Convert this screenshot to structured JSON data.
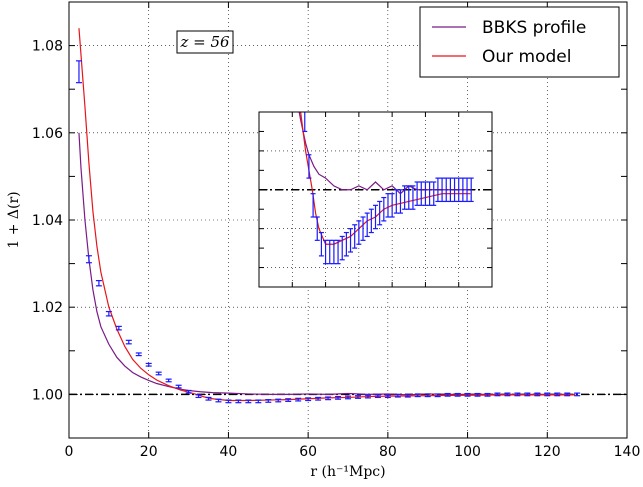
{
  "chart_data": {
    "type": "line",
    "xlabel": "r  (h⁻¹Mpc)",
    "ylabel": "1 + Δ(r)",
    "xlim": [
      0,
      140
    ],
    "ylim": [
      0.99,
      1.09
    ],
    "x_ticks": [
      "0",
      "20",
      "40",
      "60",
      "80",
      "100",
      "120",
      "140"
    ],
    "y_ticks": [
      "1.00",
      "1.02",
      "1.04",
      "1.06",
      "1.08"
    ],
    "grid": true,
    "legend_position": "top-right",
    "annotation": "z = 56",
    "reference_line": {
      "y": 1.0,
      "style": "dash-dot",
      "color": "#000000"
    },
    "series": [
      {
        "name": "BBKS profile",
        "color": "#7b1a88",
        "style": "line",
        "x": [
          2.5,
          3,
          4,
          5,
          6,
          7,
          8,
          10,
          12,
          14,
          16,
          18,
          20,
          22,
          25,
          28,
          30,
          33,
          36,
          40,
          45,
          50,
          55,
          60,
          65,
          70,
          75,
          80,
          85,
          90,
          95,
          100,
          110,
          120,
          127
        ],
        "y": [
          1.06,
          1.052,
          1.04,
          1.031,
          1.024,
          1.019,
          1.0155,
          1.0115,
          1.0085,
          1.0065,
          1.005,
          1.004,
          1.0032,
          1.0025,
          1.0018,
          1.0012,
          1.0009,
          1.0006,
          1.0004,
          1.0003,
          1.0001,
          1.0,
          1.0,
          1.0001,
          1.0,
          1.0002,
          1.0,
          1.0001,
          0.9999,
          1.0001,
          1.0,
          1.0,
          1.0,
          1.0,
          1.0
        ]
      },
      {
        "name": "Our model",
        "color": "#e8141b",
        "style": "line",
        "x": [
          2.5,
          3,
          4,
          5,
          6,
          7,
          8,
          10,
          12,
          14,
          16,
          18,
          20,
          22,
          25,
          28,
          30,
          32,
          34,
          36,
          38,
          40,
          42,
          45,
          50,
          55,
          60,
          65,
          70,
          75,
          80,
          90,
          100,
          110,
          120,
          127
        ],
        "y": [
          1.084,
          1.078,
          1.066,
          1.053,
          1.042,
          1.034,
          1.028,
          1.02,
          1.015,
          1.011,
          1.008,
          1.006,
          1.0045,
          1.0033,
          1.002,
          1.001,
          1.0005,
          1.0,
          0.9994,
          0.999,
          0.9988,
          0.9986,
          0.9986,
          0.9986,
          0.9987,
          0.9988,
          0.999,
          0.9992,
          0.9993,
          0.9995,
          0.9996,
          0.9997,
          0.9998,
          0.9999,
          0.9999,
          0.9999
        ]
      },
      {
        "name": "",
        "color": "#1a1aff",
        "style": "errorbar",
        "x": [
          2.5,
          5,
          7.5,
          10,
          12.5,
          15,
          17.5,
          20,
          22.5,
          25,
          27.5,
          30,
          32.5,
          35,
          37.5,
          40,
          42.5,
          45,
          47.5,
          50,
          52.5,
          55,
          57.5,
          60,
          62.5,
          65,
          67.5,
          70,
          72.5,
          75,
          77.5,
          80,
          82.5,
          85,
          87.5,
          90,
          92.5,
          95,
          97.5,
          100,
          102.5,
          105,
          107.5,
          110,
          112.5,
          115,
          117.5,
          120,
          122.5,
          125,
          127.5
        ],
        "y": [
          1.074,
          1.031,
          1.0255,
          1.0185,
          1.0152,
          1.012,
          1.0092,
          1.0068,
          1.0048,
          1.0032,
          1.0018,
          1.0006,
          0.9996,
          0.999,
          0.9986,
          0.9984,
          0.9984,
          0.9984,
          0.9984,
          0.9985,
          0.9986,
          0.9987,
          0.9988,
          0.9989,
          0.999,
          0.9991,
          0.9992,
          0.9993,
          0.9994,
          0.9995,
          0.9996,
          0.9996,
          0.9997,
          0.9997,
          0.9998,
          0.9998,
          0.9998,
          0.9999,
          0.9999,
          0.9999,
          0.9999,
          0.9999,
          1.0,
          1.0,
          1.0,
          1.0,
          1.0,
          1.0,
          1.0,
          1.0,
          1.0
        ],
        "err": [
          0.0025,
          0.0008,
          0.0006,
          0.0005,
          0.0004,
          0.0004,
          0.0003,
          0.0003,
          0.0003,
          0.0003,
          0.0003,
          0.0003,
          0.0003,
          0.0003,
          0.0003,
          0.0003,
          0.0003,
          0.0003,
          0.0003,
          0.0003,
          0.0003,
          0.0003,
          0.0003,
          0.0003,
          0.0003,
          0.0003,
          0.0003,
          0.0003,
          0.0003,
          0.0003,
          0.0003,
          0.0003,
          0.0003,
          0.0003,
          0.0003,
          0.0003,
          0.0003,
          0.0003,
          0.0003,
          0.0003,
          0.0003,
          0.0003,
          0.0003,
          0.0003,
          0.0003,
          0.0003,
          0.0003,
          0.0003,
          0.0003,
          0.0003,
          0.0003
        ]
      }
    ],
    "inset": {
      "xlim": [
        0,
        140
      ],
      "ylim": [
        0.9975,
        1.002
      ],
      "grid": true
    }
  }
}
